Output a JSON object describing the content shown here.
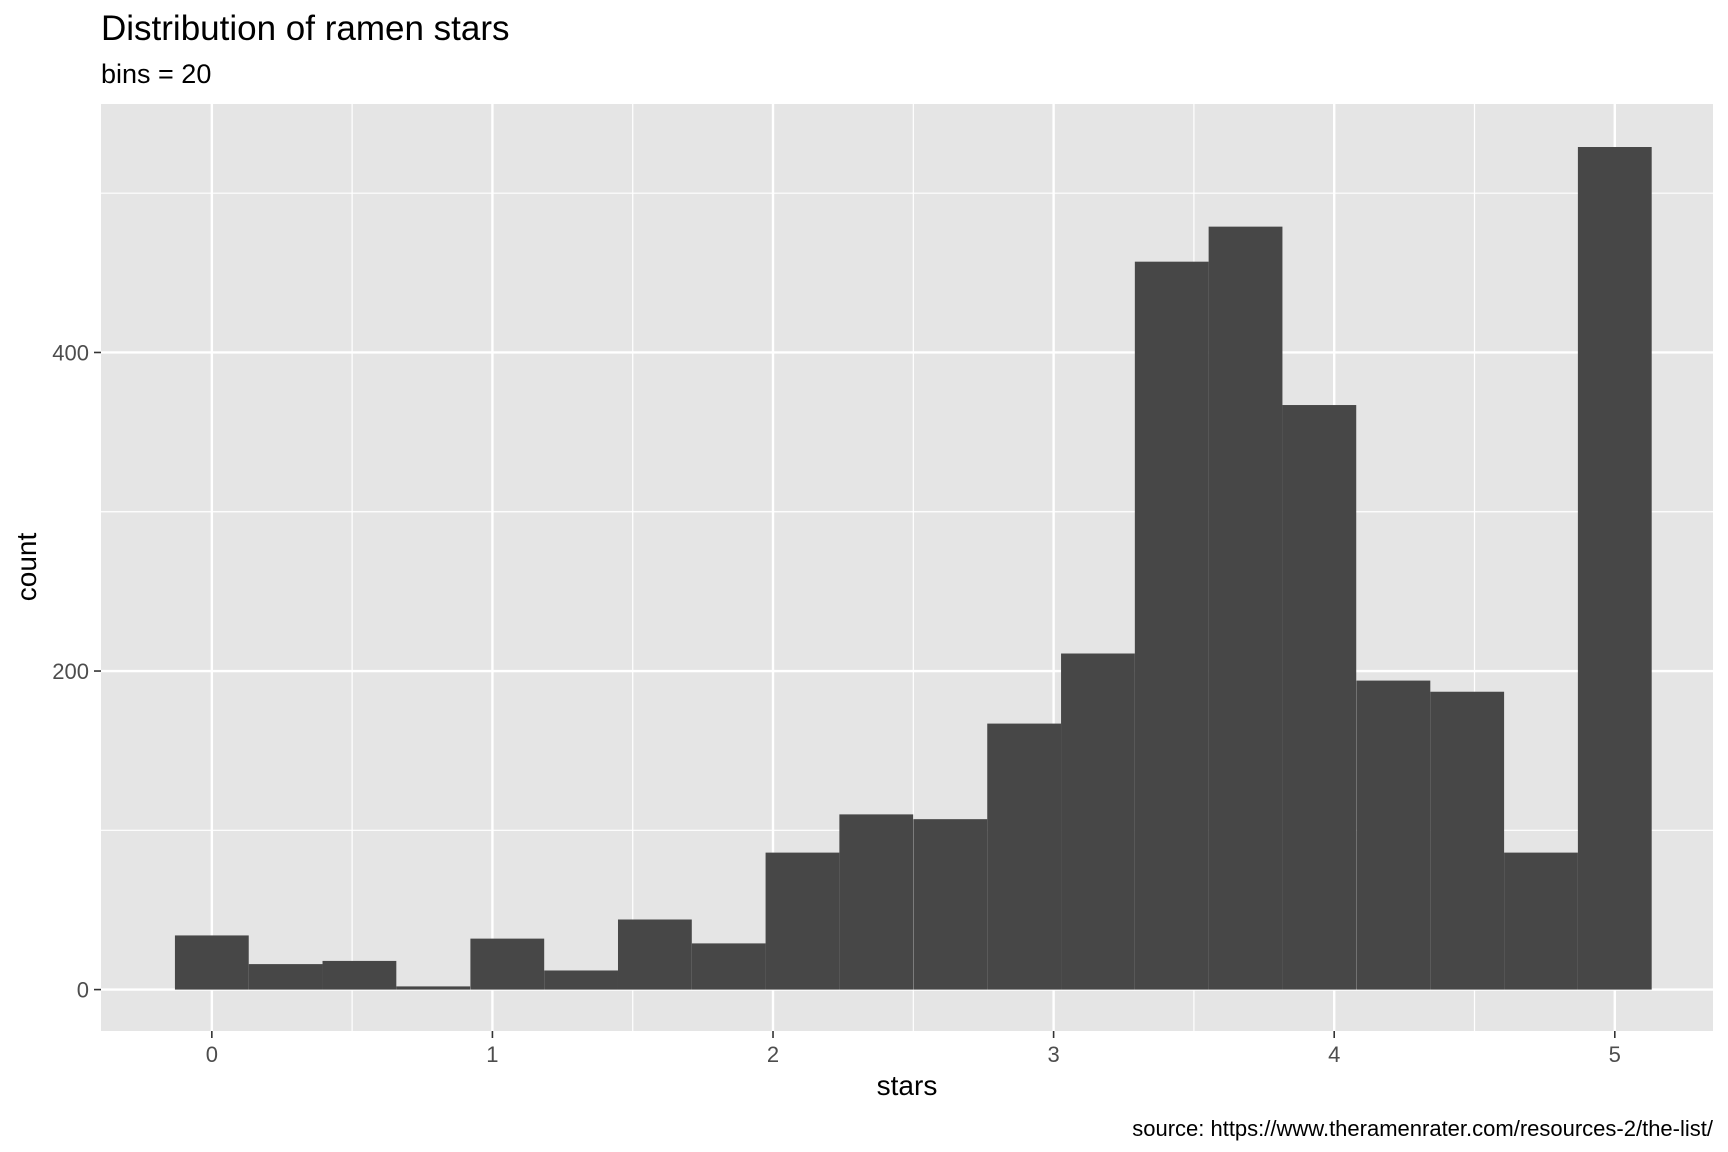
{
  "chart_data": {
    "type": "bar",
    "title": "Distribution of ramen stars",
    "subtitle": "bins = 20",
    "xlabel": "stars",
    "ylabel": "count",
    "caption": "source: https://www.theramenrater.com/resources-2/the-list/",
    "bin_width": 0.263,
    "bin_centers": [
      0,
      0.263,
      0.526,
      0.789,
      1.053,
      1.316,
      1.579,
      1.842,
      2.105,
      2.368,
      2.632,
      2.895,
      3.158,
      3.421,
      3.684,
      3.947,
      4.211,
      4.474,
      4.737,
      5.0
    ],
    "values": [
      34,
      16,
      18,
      2,
      32,
      12,
      44,
      29,
      86,
      110,
      107,
      167,
      211,
      457,
      479,
      367,
      194,
      187,
      86,
      529
    ],
    "xlim": [
      -0.395,
      5.35
    ],
    "ylim": [
      -26,
      556
    ],
    "x_ticks": [
      0,
      1,
      2,
      3,
      4,
      5
    ],
    "x_tick_labels": [
      "0",
      "1",
      "2",
      "3",
      "4",
      "5"
    ],
    "y_ticks": [
      0,
      200,
      400
    ],
    "y_tick_labels": [
      "0",
      "200",
      "400"
    ],
    "bar_color": "#474747",
    "panel_color": "#e5e5e5",
    "grid": true
  }
}
